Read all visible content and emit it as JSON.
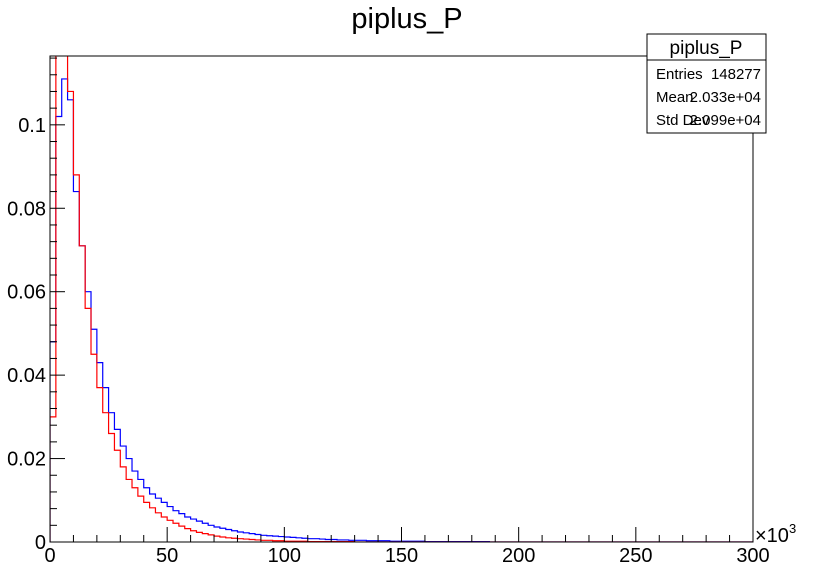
{
  "chart_data": {
    "type": "line",
    "title": "piplus_P",
    "xlabel": "",
    "ylabel": "",
    "x_exponent_label": "×10",
    "x_exponent_power": "3",
    "xlim": [
      0,
      300
    ],
    "ylim": [
      0,
      0.1165
    ],
    "x_ticks": [
      0,
      50,
      100,
      150,
      200,
      250,
      300
    ],
    "x_tick_labels": [
      "0",
      "50",
      "100",
      "150",
      "200",
      "250",
      "300"
    ],
    "y_ticks": [
      0,
      0.02,
      0.04,
      0.06,
      0.08,
      0.1
    ],
    "y_tick_labels": [
      "0",
      "0.02",
      "0.04",
      "0.06",
      "0.08",
      "0.1"
    ],
    "bin_width": 2.5,
    "series": [
      {
        "color": "#0000ff",
        "values": [
          0.048,
          0.102,
          0.111,
          0.106,
          0.084,
          0.071,
          0.06,
          0.051,
          0.043,
          0.037,
          0.031,
          0.027,
          0.023,
          0.02,
          0.017,
          0.015,
          0.013,
          0.0115,
          0.0105,
          0.0095,
          0.0085,
          0.0075,
          0.0068,
          0.006,
          0.0055,
          0.005,
          0.0045,
          0.004,
          0.0036,
          0.0033,
          0.003,
          0.0027,
          0.0024,
          0.0022,
          0.002,
          0.0018,
          0.0016,
          0.0015,
          0.0014,
          0.0013,
          0.0012,
          0.0011,
          0.001,
          0.0009,
          0.0008,
          0.0008,
          0.0007,
          0.0006,
          0.0006,
          0.0005,
          0.0005,
          0.0004,
          0.0004,
          0.0004,
          0.0003,
          0.0003,
          0.0003,
          0.0003,
          0.0002,
          0.0002,
          0.0002,
          0.0002,
          0.0002,
          0.0002,
          0.0001,
          0.0001,
          0.0001,
          0.0001,
          0.0001,
          0.0001,
          0.0001,
          0.0001,
          0.0001,
          0.0001,
          0.0001,
          0,
          0,
          0,
          0,
          0,
          0,
          0,
          0,
          0,
          0,
          0,
          0,
          0,
          0,
          0,
          0,
          0,
          0,
          0,
          0,
          0,
          0,
          0,
          0,
          0,
          0,
          0,
          0,
          0,
          0,
          0,
          0,
          0,
          0,
          0,
          0,
          0,
          0,
          0,
          0,
          0,
          0,
          0,
          0,
          0
        ]
      },
      {
        "color": "#ff0000",
        "values": [
          0.03,
          0.118,
          0.118,
          0.108,
          0.088,
          0.071,
          0.056,
          0.045,
          0.037,
          0.031,
          0.026,
          0.022,
          0.018,
          0.015,
          0.013,
          0.011,
          0.0095,
          0.0082,
          0.007,
          0.006,
          0.0052,
          0.0045,
          0.0038,
          0.0032,
          0.0027,
          0.0023,
          0.002,
          0.0017,
          0.0014,
          0.0012,
          0.001,
          0.0009,
          0.0008,
          0.0007,
          0.0006,
          0.0005,
          0.0004,
          0.0004,
          0.0003,
          0.0003,
          0.0002,
          0.0002,
          0.0002,
          0.0002,
          0.0001,
          0.0001,
          0.0001,
          0.0001,
          0.0001,
          0.0001,
          0.0001,
          0.0001,
          0,
          0,
          0,
          0,
          0,
          0,
          0,
          0,
          0,
          0,
          0,
          0,
          0,
          0,
          0,
          0,
          0,
          0,
          0,
          0,
          0,
          0,
          0,
          0,
          0,
          0,
          0,
          0,
          0,
          0,
          0,
          0,
          0,
          0,
          0,
          0,
          0,
          0,
          0,
          0,
          0,
          0,
          0,
          0,
          0,
          0,
          0,
          0,
          0,
          0,
          0,
          0,
          0,
          0,
          0,
          0,
          0,
          0,
          0,
          0,
          0,
          0,
          0,
          0,
          0,
          0,
          0,
          0
        ]
      }
    ],
    "stats_box": {
      "title": "piplus_P",
      "rows": [
        {
          "label": "Entries",
          "value": "148277"
        },
        {
          "label": "Mean",
          "value": "2.033e+04"
        },
        {
          "label": "Std Dev",
          "value": "2.099e+04"
        }
      ]
    },
    "grid": false,
    "legend": "none"
  }
}
